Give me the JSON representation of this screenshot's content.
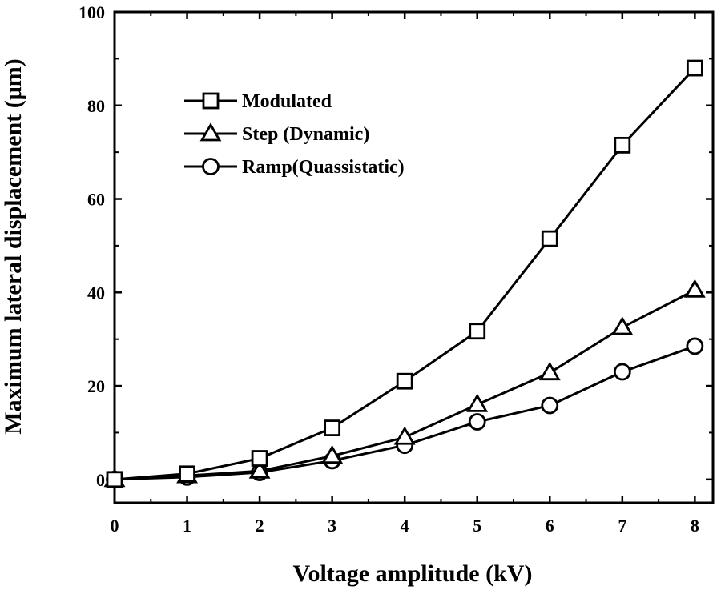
{
  "chart_data": {
    "type": "line",
    "title": "",
    "xlabel": "Voltage amplitude (kV)",
    "ylabel": "Maximum lateral displacement (μm)",
    "xlim": [
      0,
      8.25
    ],
    "ylim": [
      -5,
      100
    ],
    "x_ticks": [
      0,
      1,
      2,
      3,
      4,
      5,
      6,
      7,
      8
    ],
    "y_ticks": [
      0,
      20,
      40,
      60,
      80,
      100
    ],
    "grid": false,
    "legend_position": "top-left",
    "x": [
      0,
      1,
      2,
      3,
      4,
      5,
      6,
      7,
      8
    ],
    "series": [
      {
        "name": "Modulated",
        "marker": "square",
        "values": [
          0,
          1.2,
          4.5,
          11.0,
          21.0,
          31.7,
          51.5,
          71.5,
          88.0
        ]
      },
      {
        "name": "Step (Dynamic)",
        "marker": "triangle",
        "values": [
          0,
          0.8,
          1.8,
          5.0,
          9.0,
          16.0,
          22.8,
          32.5,
          40.5
        ]
      },
      {
        "name": "Ramp(Quassistatic)",
        "marker": "circle",
        "values": [
          0,
          0.5,
          1.5,
          4.0,
          7.3,
          12.3,
          15.8,
          23.0,
          28.5
        ]
      }
    ]
  }
}
